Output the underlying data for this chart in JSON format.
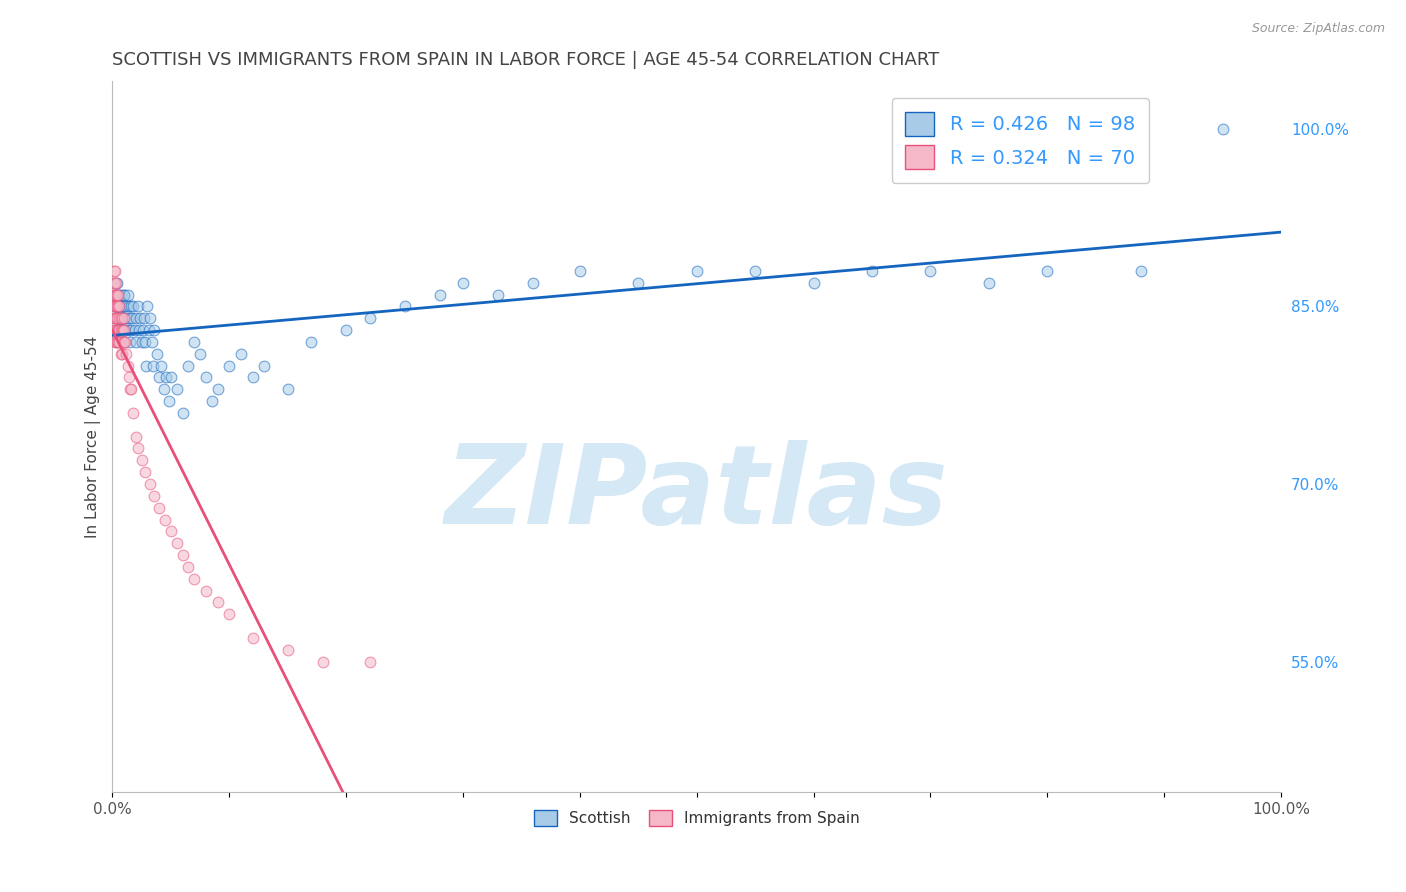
{
  "title": "SCOTTISH VS IMMIGRANTS FROM SPAIN IN LABOR FORCE | AGE 45-54 CORRELATION CHART",
  "source": "Source: ZipAtlas.com",
  "ylabel": "In Labor Force | Age 45-54",
  "legend_blue_R": "R = 0.426",
  "legend_blue_N": "N = 98",
  "legend_pink_R": "R = 0.324",
  "legend_pink_N": "N = 70",
  "legend_label_blue": "Scottish",
  "legend_label_pink": "Immigrants from Spain",
  "blue_color": "#a8cce8",
  "pink_color": "#f4b8c8",
  "trend_blue_color": "#1565c0",
  "trend_pink_color": "#e8507a",
  "scatter_blue_x": [
    0.002,
    0.003,
    0.003,
    0.004,
    0.004,
    0.004,
    0.005,
    0.005,
    0.005,
    0.005,
    0.006,
    0.006,
    0.006,
    0.006,
    0.007,
    0.007,
    0.007,
    0.007,
    0.008,
    0.008,
    0.008,
    0.009,
    0.009,
    0.01,
    0.01,
    0.01,
    0.01,
    0.01,
    0.01,
    0.01,
    0.012,
    0.012,
    0.013,
    0.013,
    0.014,
    0.014,
    0.015,
    0.015,
    0.016,
    0.016,
    0.017,
    0.018,
    0.019,
    0.02,
    0.02,
    0.022,
    0.023,
    0.024,
    0.025,
    0.026,
    0.027,
    0.028,
    0.029,
    0.03,
    0.031,
    0.032,
    0.034,
    0.035,
    0.036,
    0.038,
    0.04,
    0.042,
    0.044,
    0.046,
    0.048,
    0.05,
    0.055,
    0.06,
    0.065,
    0.07,
    0.075,
    0.08,
    0.085,
    0.09,
    0.1,
    0.11,
    0.12,
    0.13,
    0.15,
    0.17,
    0.2,
    0.22,
    0.25,
    0.28,
    0.3,
    0.33,
    0.36,
    0.4,
    0.45,
    0.5,
    0.55,
    0.6,
    0.65,
    0.7,
    0.75,
    0.8,
    0.88,
    0.95
  ],
  "scatter_blue_y": [
    0.85,
    0.86,
    0.84,
    0.87,
    0.85,
    0.83,
    0.86,
    0.85,
    0.84,
    0.83,
    0.86,
    0.85,
    0.84,
    0.83,
    0.86,
    0.85,
    0.84,
    0.83,
    0.85,
    0.84,
    0.83,
    0.85,
    0.84,
    0.86,
    0.85,
    0.84,
    0.83,
    0.82,
    0.86,
    0.84,
    0.85,
    0.83,
    0.86,
    0.84,
    0.85,
    0.83,
    0.84,
    0.82,
    0.85,
    0.83,
    0.84,
    0.85,
    0.83,
    0.84,
    0.82,
    0.85,
    0.83,
    0.84,
    0.82,
    0.83,
    0.84,
    0.82,
    0.8,
    0.85,
    0.83,
    0.84,
    0.82,
    0.8,
    0.83,
    0.81,
    0.79,
    0.8,
    0.78,
    0.79,
    0.77,
    0.79,
    0.78,
    0.76,
    0.8,
    0.82,
    0.81,
    0.79,
    0.77,
    0.78,
    0.8,
    0.81,
    0.79,
    0.8,
    0.78,
    0.82,
    0.83,
    0.84,
    0.85,
    0.86,
    0.87,
    0.86,
    0.87,
    0.88,
    0.87,
    0.88,
    0.88,
    0.87,
    0.88,
    0.88,
    0.87,
    0.88,
    0.88,
    1.0
  ],
  "scatter_pink_x": [
    0.001,
    0.001,
    0.001,
    0.001,
    0.001,
    0.001,
    0.002,
    0.002,
    0.002,
    0.002,
    0.002,
    0.002,
    0.002,
    0.003,
    0.003,
    0.003,
    0.003,
    0.003,
    0.003,
    0.004,
    0.004,
    0.004,
    0.004,
    0.004,
    0.005,
    0.005,
    0.005,
    0.005,
    0.006,
    0.006,
    0.006,
    0.006,
    0.007,
    0.007,
    0.007,
    0.008,
    0.008,
    0.008,
    0.009,
    0.009,
    0.01,
    0.01,
    0.01,
    0.011,
    0.012,
    0.013,
    0.014,
    0.015,
    0.016,
    0.018,
    0.02,
    0.022,
    0.025,
    0.028,
    0.032,
    0.036,
    0.04,
    0.045,
    0.05,
    0.055,
    0.06,
    0.065,
    0.07,
    0.08,
    0.09,
    0.1,
    0.12,
    0.15,
    0.18,
    0.22
  ],
  "scatter_pink_y": [
    0.86,
    0.87,
    0.88,
    0.85,
    0.84,
    0.83,
    0.88,
    0.87,
    0.86,
    0.85,
    0.84,
    0.83,
    0.82,
    0.87,
    0.86,
    0.85,
    0.84,
    0.83,
    0.82,
    0.86,
    0.85,
    0.84,
    0.83,
    0.82,
    0.86,
    0.85,
    0.83,
    0.82,
    0.85,
    0.84,
    0.83,
    0.82,
    0.84,
    0.83,
    0.81,
    0.84,
    0.83,
    0.81,
    0.83,
    0.82,
    0.84,
    0.83,
    0.82,
    0.82,
    0.81,
    0.8,
    0.79,
    0.78,
    0.78,
    0.76,
    0.74,
    0.73,
    0.72,
    0.71,
    0.7,
    0.69,
    0.68,
    0.67,
    0.66,
    0.65,
    0.64,
    0.63,
    0.62,
    0.61,
    0.6,
    0.59,
    0.57,
    0.56,
    0.55,
    0.55
  ],
  "xlim": [
    0.0,
    1.0
  ],
  "ylim": [
    0.44,
    1.04
  ],
  "watermark_text": "ZIPatlas",
  "watermark_color": "#d5e8f5",
  "background_color": "#ffffff",
  "title_fontsize": 13,
  "axis_label_color": "#444444",
  "right_axis_color": "#3399ff",
  "grid_color": "#e0e0e0",
  "scatter_size": 60,
  "scatter_alpha": 0.55,
  "trend_linewidth": 2.0
}
